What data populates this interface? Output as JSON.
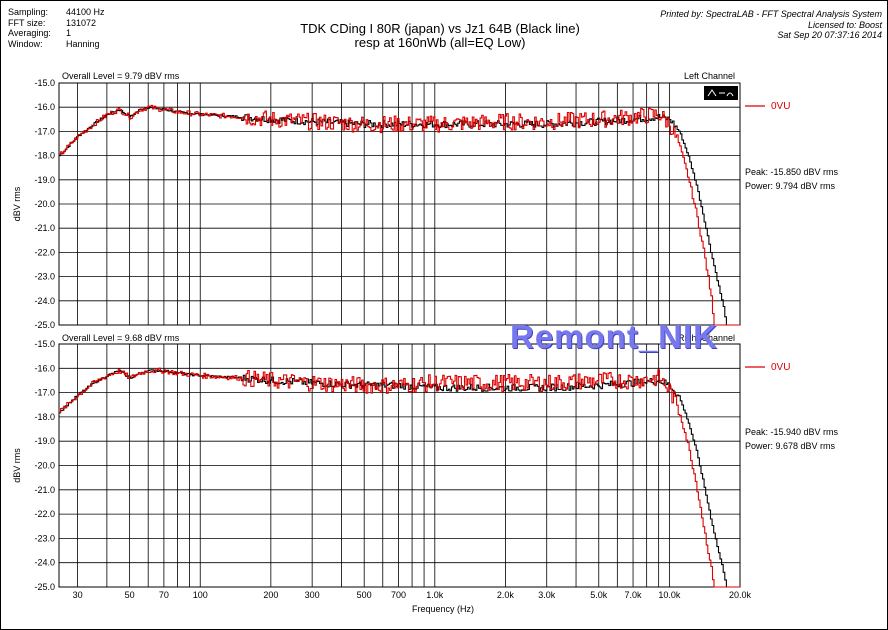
{
  "header": {
    "sampling_label": "Sampling:",
    "sampling_value": "44100 Hz",
    "fft_label": "FFT size:",
    "fft_value": "131072",
    "avg_label": "Averaging:",
    "avg_value": "1",
    "window_label": "Window:",
    "window_value": "Hanning",
    "title_line1": "TDK CDing I 80R (japan) vs Jz1 64B (Black line)",
    "title_line2": "resp at 160nWb (all=EQ Low)",
    "printed_by": "Printed by: SpectraLAB - FFT Spectral Analysis System",
    "licensed_to": "Licensed to: Boost",
    "datetime": "Sat Sep 20 07:37:16 2014"
  },
  "watermark": "Remont_NIK",
  "chart_data": [
    {
      "type": "line",
      "panel": "top",
      "overall_level": "Overall Level = 9.79 dBV rms",
      "channel": "Left Channel",
      "legend": "0VU",
      "peak": "Peak: -15.850 dBV rms",
      "power": "Power: 9.794 dBV rms",
      "ylabel": "dBV rms",
      "ylim": [
        -25.0,
        -15.0
      ],
      "yticks": [
        "-15.0",
        "-16.0",
        "-17.0",
        "-18.0",
        "-19.0",
        "-20.0",
        "-21.0",
        "-22.0",
        "-23.0",
        "-24.0",
        "-25.0"
      ],
      "xscale": "log",
      "xlim": [
        25,
        20000
      ],
      "series": [
        {
          "color": "#000000",
          "x": [
            25,
            30,
            35,
            40,
            45,
            50,
            55,
            60,
            70,
            80,
            100,
            150,
            200,
            300,
            500,
            700,
            1000,
            2000,
            3000,
            5000,
            7000,
            9000,
            10000,
            11000,
            12000,
            13000,
            14000,
            15000,
            16000,
            17000,
            17500
          ],
          "y": [
            -18.0,
            -17.2,
            -16.7,
            -16.3,
            -16.1,
            -16.4,
            -16.1,
            -16.0,
            -16.1,
            -16.2,
            -16.3,
            -16.4,
            -16.5,
            -16.6,
            -16.7,
            -16.7,
            -16.7,
            -16.7,
            -16.7,
            -16.6,
            -16.5,
            -16.4,
            -16.5,
            -17.0,
            -18.0,
            -19.2,
            -20.6,
            -22.0,
            -23.2,
            -24.3,
            -25.0
          ],
          "ripple": 0.15
        },
        {
          "color": "#dd0000",
          "x": [
            25,
            30,
            35,
            40,
            45,
            50,
            55,
            60,
            70,
            80,
            100,
            150,
            200,
            300,
            500,
            700,
            1000,
            2000,
            3000,
            5000,
            7000,
            9000,
            10000,
            11000,
            12000,
            13000,
            14000,
            15000,
            15500
          ],
          "y": [
            -18.0,
            -17.2,
            -16.7,
            -16.3,
            -16.1,
            -16.4,
            -16.1,
            -16.0,
            -16.1,
            -16.2,
            -16.3,
            -16.4,
            -16.5,
            -16.6,
            -16.7,
            -16.7,
            -16.7,
            -16.6,
            -16.6,
            -16.5,
            -16.4,
            -16.3,
            -16.7,
            -17.6,
            -18.9,
            -20.4,
            -22.0,
            -23.8,
            -25.0
          ],
          "ripple": 0.35
        }
      ]
    },
    {
      "type": "line",
      "panel": "bottom",
      "overall_level": "Overall Level = 9.68 dBV rms",
      "channel": "Right Channel",
      "legend": "0VU",
      "peak": "Peak: -15.940 dBV rms",
      "power": "Power: 9.678 dBV rms",
      "ylabel": "dBV rms",
      "ylim": [
        -25.0,
        -15.0
      ],
      "yticks": [
        "-15.0",
        "-16.0",
        "-17.0",
        "-18.0",
        "-19.0",
        "-20.0",
        "-21.0",
        "-22.0",
        "-23.0",
        "-24.0",
        "-25.0"
      ],
      "xscale": "log",
      "xlim": [
        25,
        20000
      ],
      "xlabel": "Frequency (Hz)",
      "xticks": [
        {
          "v": 30,
          "t": "30"
        },
        {
          "v": 50,
          "t": "50"
        },
        {
          "v": 70,
          "t": "70"
        },
        {
          "v": 100,
          "t": "100"
        },
        {
          "v": 200,
          "t": "200"
        },
        {
          "v": 300,
          "t": "300"
        },
        {
          "v": 500,
          "t": "500"
        },
        {
          "v": 700,
          "t": "700"
        },
        {
          "v": 1000,
          "t": "1.0k"
        },
        {
          "v": 2000,
          "t": "2.0k"
        },
        {
          "v": 3000,
          "t": "3.0k"
        },
        {
          "v": 5000,
          "t": "5.0k"
        },
        {
          "v": 7000,
          "t": "7.0k"
        },
        {
          "v": 10000,
          "t": "10.0k"
        },
        {
          "v": 20000,
          "t": "20.0k"
        }
      ],
      "series": [
        {
          "color": "#000000",
          "x": [
            25,
            30,
            35,
            40,
            45,
            50,
            55,
            60,
            70,
            80,
            100,
            150,
            200,
            300,
            500,
            700,
            1000,
            2000,
            3000,
            5000,
            7000,
            9000,
            10000,
            11000,
            12000,
            13000,
            14000,
            15000,
            16000,
            17000,
            17500
          ],
          "y": [
            -17.8,
            -17.1,
            -16.6,
            -16.3,
            -16.1,
            -16.4,
            -16.2,
            -16.1,
            -16.1,
            -16.2,
            -16.3,
            -16.4,
            -16.5,
            -16.6,
            -16.7,
            -16.7,
            -16.8,
            -16.8,
            -16.8,
            -16.7,
            -16.6,
            -16.5,
            -16.7,
            -17.2,
            -18.2,
            -19.4,
            -20.8,
            -22.2,
            -23.4,
            -24.4,
            -25.0
          ],
          "ripple": 0.15
        },
        {
          "color": "#dd0000",
          "x": [
            25,
            30,
            35,
            40,
            45,
            50,
            55,
            60,
            70,
            80,
            100,
            150,
            200,
            300,
            500,
            700,
            1000,
            2000,
            3000,
            5000,
            7000,
            9000,
            10000,
            11000,
            12000,
            13000,
            14000,
            15000,
            15500
          ],
          "y": [
            -17.8,
            -17.1,
            -16.6,
            -16.3,
            -16.1,
            -16.4,
            -16.2,
            -16.1,
            -16.1,
            -16.2,
            -16.3,
            -16.4,
            -16.5,
            -16.6,
            -16.7,
            -16.7,
            -16.6,
            -16.6,
            -16.6,
            -16.5,
            -16.5,
            -16.4,
            -16.9,
            -17.8,
            -19.2,
            -20.8,
            -22.6,
            -24.2,
            -25.0
          ],
          "ripple": 0.35
        }
      ]
    }
  ]
}
